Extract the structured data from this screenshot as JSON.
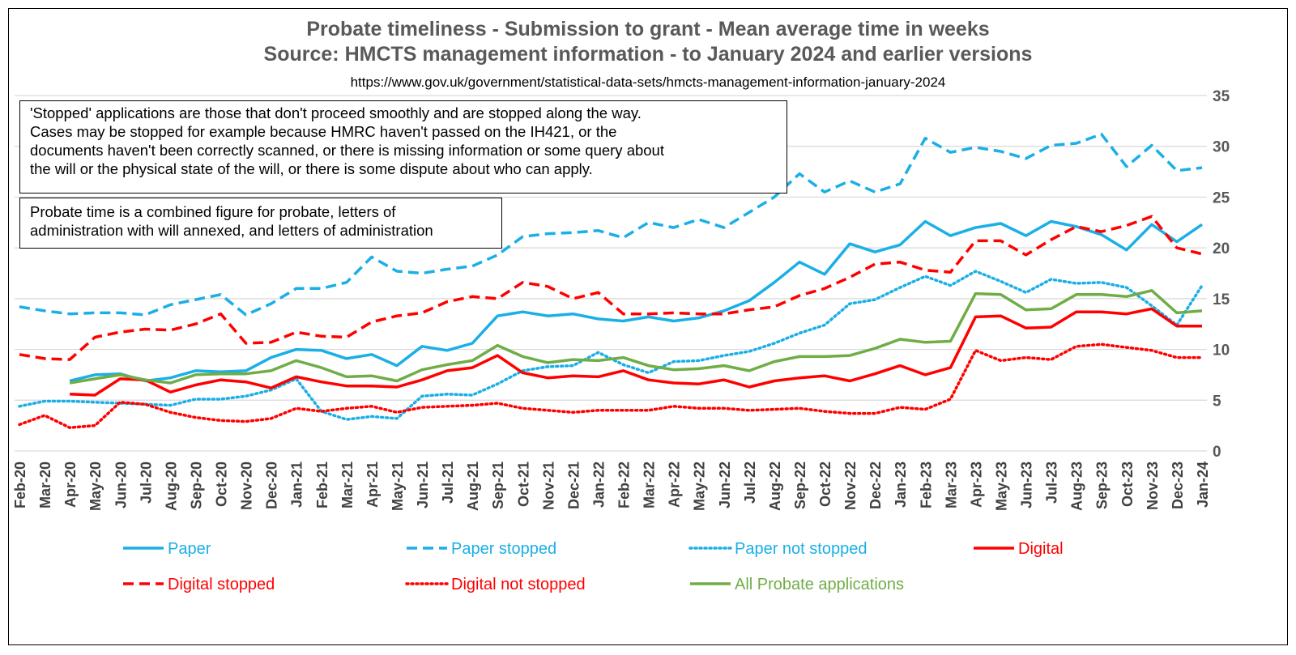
{
  "titles": {
    "line1": "Probate timeliness - Submission to grant - Mean average time in weeks",
    "line2": "Source: HMCTS management information - to January 2024 and earlier versions",
    "url": "https://www.gov.uk/government/statistical-data-sets/hmcts-management-information-january-2024"
  },
  "notes": {
    "stopped": "'Stopped' applications are those that don't proceed smoothly and are stopped along the way.\nCases may be stopped for example because HMRC haven't passed on the IH421, or the\ndocuments haven't been correctly scanned, or there is missing information or some query about\nthe will or the physical state of the will, or there is some dispute about who can apply.",
    "probate_time": "Probate time is a combined figure for probate, letters of\nadministration with will annexed, and letters of administration"
  },
  "chart_data": {
    "type": "line",
    "title": "Probate timeliness - Submission to grant - Mean average time in weeks",
    "subtitle": "Source: HMCTS management information - to January 2024 and earlier versions",
    "ylim": [
      0,
      35
    ],
    "yticks": [
      0,
      5,
      10,
      15,
      20,
      25,
      30,
      35
    ],
    "y_axis_side": "right",
    "grid": true,
    "legend_position": "bottom",
    "categories": [
      "Feb-20",
      "Mar-20",
      "Apr-20",
      "May-20",
      "Jun-20",
      "Jul-20",
      "Aug-20",
      "Sep-20",
      "Oct-20",
      "Nov-20",
      "Dec-20",
      "Jan-21",
      "Feb-21",
      "Mar-21",
      "Apr-21",
      "May-21",
      "Jun-21",
      "Jul-21",
      "Aug-21",
      "Sep-21",
      "Oct-21",
      "Nov-21",
      "Dec-21",
      "Jan-22",
      "Feb-22",
      "Mar-22",
      "Apr-22",
      "May-22",
      "Jun-22",
      "Jul-22",
      "Aug-22",
      "Sep-22",
      "Oct-22",
      "Nov-22",
      "Dec-22",
      "Jan-23",
      "Feb-23",
      "Mar-23",
      "Apr-23",
      "May-23",
      "Jun-23",
      "Jul-23",
      "Aug-23",
      "Sep-23",
      "Oct-23",
      "Nov-23",
      "Dec-23",
      "Jan-24"
    ],
    "series": [
      {
        "name": "Paper",
        "color": "#1AAFE6",
        "dash": "solid",
        "values": [
          null,
          null,
          6.9,
          7.5,
          7.6,
          6.9,
          7.2,
          7.9,
          7.8,
          7.9,
          9.2,
          10.0,
          9.9,
          9.1,
          9.5,
          8.4,
          10.3,
          9.9,
          10.6,
          13.3,
          13.7,
          13.3,
          13.5,
          13.0,
          12.8,
          13.2,
          12.8,
          13.1,
          13.8,
          14.8,
          16.6,
          18.6,
          17.4,
          20.4,
          19.6,
          20.3,
          22.6,
          21.2,
          22.0,
          22.4,
          21.2,
          22.6,
          22.1,
          21.3,
          19.8,
          22.3,
          20.6,
          22.3
        ]
      },
      {
        "name": "Paper stopped",
        "color": "#1AAFE6",
        "dash": "dashed",
        "values": [
          14.2,
          13.8,
          13.5,
          13.6,
          13.6,
          13.4,
          14.4,
          14.9,
          15.4,
          13.4,
          14.5,
          16.0,
          16.0,
          16.6,
          19.1,
          17.7,
          17.5,
          17.9,
          18.2,
          19.3,
          21.1,
          21.4,
          21.5,
          21.7,
          21.0,
          22.5,
          22.0,
          22.8,
          22.0,
          23.5,
          25.0,
          27.3,
          25.5,
          26.6,
          25.5,
          26.3,
          30.8,
          29.4,
          29.9,
          29.5,
          28.8,
          30.1,
          30.3,
          31.2,
          28.0,
          30.1,
          27.6,
          27.9
        ]
      },
      {
        "name": "Paper not stopped",
        "color": "#1AAFE6",
        "dash": "dotted",
        "values": [
          4.4,
          4.9,
          4.9,
          4.8,
          4.7,
          4.6,
          4.5,
          5.1,
          5.1,
          5.4,
          6.0,
          7.1,
          3.9,
          3.1,
          3.4,
          3.2,
          5.4,
          5.6,
          5.5,
          6.6,
          7.9,
          8.3,
          8.4,
          9.7,
          8.5,
          7.7,
          8.8,
          8.9,
          9.4,
          9.8,
          10.6,
          11.6,
          12.4,
          14.5,
          14.9,
          16.1,
          17.2,
          16.3,
          17.7,
          16.7,
          15.6,
          16.9,
          16.5,
          16.6,
          16.1,
          14.3,
          12.4,
          16.3
        ]
      },
      {
        "name": "Digital",
        "color": "#FF0000",
        "dash": "solid",
        "values": [
          null,
          null,
          5.6,
          5.5,
          7.1,
          7.0,
          5.8,
          6.5,
          7.0,
          6.8,
          6.2,
          7.3,
          6.8,
          6.4,
          6.4,
          6.3,
          7.0,
          7.9,
          8.2,
          9.4,
          7.7,
          7.2,
          7.4,
          7.3,
          7.9,
          7.0,
          6.7,
          6.6,
          7.0,
          6.3,
          6.9,
          7.2,
          7.4,
          6.9,
          7.6,
          8.4,
          7.5,
          8.2,
          13.2,
          13.3,
          12.1,
          12.2,
          13.7,
          13.7,
          13.5,
          14.0,
          12.3,
          12.3
        ]
      },
      {
        "name": "Digital stopped",
        "color": "#FF0000",
        "dash": "dashed",
        "values": [
          9.5,
          9.1,
          9.0,
          11.2,
          11.7,
          12.0,
          11.9,
          12.5,
          13.5,
          10.6,
          10.7,
          11.7,
          11.3,
          11.2,
          12.7,
          13.3,
          13.6,
          14.7,
          15.2,
          15.0,
          16.6,
          16.2,
          15.0,
          15.6,
          13.5,
          13.5,
          13.6,
          13.5,
          13.5,
          13.9,
          14.2,
          15.3,
          16.0,
          17.1,
          18.4,
          18.6,
          17.8,
          17.6,
          20.7,
          20.7,
          19.3,
          20.8,
          22.1,
          21.6,
          22.2,
          23.1,
          20.0,
          19.4
        ]
      },
      {
        "name": "Digital not stopped",
        "color": "#FF0000",
        "dash": "dotted",
        "values": [
          2.6,
          3.5,
          2.3,
          2.5,
          4.8,
          4.6,
          3.8,
          3.3,
          3.0,
          2.9,
          3.2,
          4.2,
          3.9,
          4.2,
          4.4,
          3.8,
          4.3,
          4.4,
          4.5,
          4.7,
          4.2,
          4.0,
          3.8,
          4.0,
          4.0,
          4.0,
          4.4,
          4.2,
          4.2,
          4.0,
          4.1,
          4.2,
          3.9,
          3.7,
          3.7,
          4.3,
          4.1,
          5.1,
          9.9,
          8.9,
          9.2,
          9.0,
          10.3,
          10.5,
          10.2,
          9.9,
          9.2,
          9.2
        ]
      },
      {
        "name": "All Probate applications",
        "color": "#70AD47",
        "dash": "solid",
        "values": [
          null,
          null,
          6.7,
          7.1,
          7.5,
          7.0,
          6.7,
          7.5,
          7.6,
          7.6,
          7.9,
          8.9,
          8.2,
          7.3,
          7.4,
          6.9,
          8.0,
          8.5,
          8.9,
          10.4,
          9.3,
          8.7,
          9.0,
          8.9,
          9.2,
          8.4,
          8.0,
          8.1,
          8.4,
          7.9,
          8.8,
          9.3,
          9.3,
          9.4,
          10.1,
          11.0,
          10.7,
          10.8,
          15.5,
          15.4,
          13.9,
          14.0,
          15.4,
          15.4,
          15.2,
          15.8,
          13.6,
          13.8
        ]
      }
    ]
  }
}
